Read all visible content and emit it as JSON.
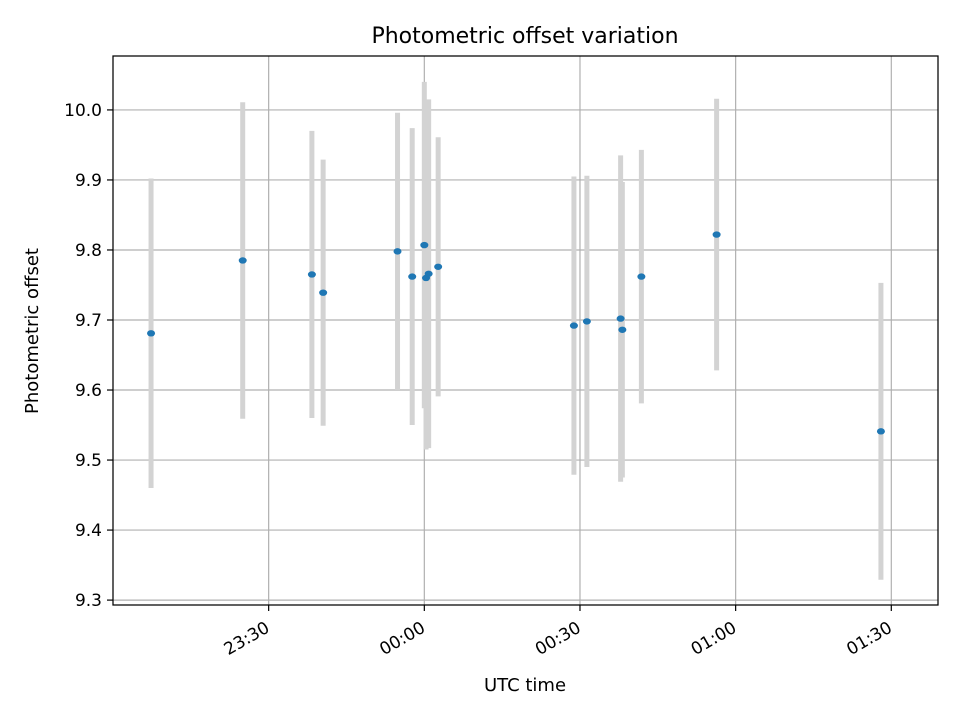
{
  "chart_data": {
    "type": "scatter",
    "title": "Photometric offset variation",
    "xlabel": "UTC time",
    "ylabel": "Photometric offset",
    "xlim": [
      "23:00",
      "01:39"
    ],
    "ylim": [
      9.293,
      10.077
    ],
    "x_ticks": [
      "23:30",
      "00:00",
      "00:30",
      "01:00",
      "01:30"
    ],
    "y_ticks": [
      "9.3",
      "9.4",
      "9.5",
      "9.6",
      "9.7",
      "9.8",
      "9.9",
      "10.0"
    ],
    "grid": true,
    "colors": {
      "point": "#1f77b4",
      "errorbar": "#d3d3d3",
      "grid": "#b0b0b0"
    },
    "points": [
      {
        "t": "23:07:20",
        "y": 9.681,
        "err": 0.221
      },
      {
        "t": "23:25:00",
        "y": 9.785,
        "err": 0.226
      },
      {
        "t": "23:38:20",
        "y": 9.765,
        "err": 0.205
      },
      {
        "t": "23:40:30",
        "y": 9.739,
        "err": 0.19
      },
      {
        "t": "23:54:50",
        "y": 9.798,
        "err": 0.198
      },
      {
        "t": "23:57:40",
        "y": 9.762,
        "err": 0.212
      },
      {
        "t": "00:00:00",
        "y": 9.807,
        "err": 0.233
      },
      {
        "t": "00:00:20",
        "y": 9.76,
        "err": 0.245
      },
      {
        "t": "00:00:50",
        "y": 9.766,
        "err": 0.249
      },
      {
        "t": "00:02:40",
        "y": 9.776,
        "err": 0.185
      },
      {
        "t": "00:28:50",
        "y": 9.692,
        "err": 0.213
      },
      {
        "t": "00:31:20",
        "y": 9.698,
        "err": 0.208
      },
      {
        "t": "00:37:50",
        "y": 9.702,
        "err": 0.233
      },
      {
        "t": "00:38:10",
        "y": 9.686,
        "err": 0.211
      },
      {
        "t": "00:41:50",
        "y": 9.762,
        "err": 0.181
      },
      {
        "t": "00:56:20",
        "y": 9.822,
        "err": 0.194
      },
      {
        "t": "01:28:00",
        "y": 9.541,
        "err": 0.212
      }
    ]
  }
}
